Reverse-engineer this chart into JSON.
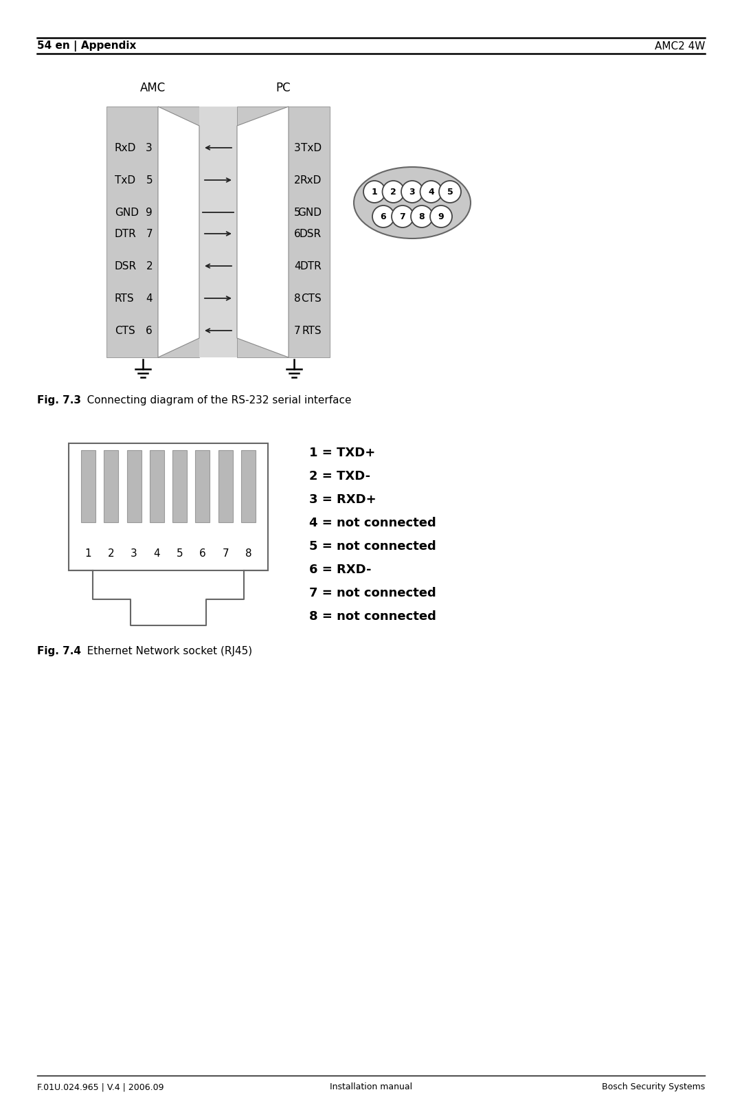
{
  "page_width": 10.8,
  "page_height": 16.18,
  "bg_color": "#ffffff",
  "header_left": "54 en | Appendix",
  "header_right": "AMC2 4W",
  "footer_left": "F.01U.024.965 | V.4 | 2006.09",
  "footer_center": "Installation manual",
  "footer_right": "Bosch Security Systems",
  "fig73_caption_bold": "Fig. 7.3",
  "fig73_caption_rest": "   Connecting diagram of the RS-232 serial interface",
  "fig74_caption_bold": "Fig. 7.4",
  "fig74_caption_rest": "   Ethernet Network socket (RJ45)",
  "amc_label": "AMC",
  "pc_label": "PC",
  "amc_signals": [
    "RxD",
    "TxD",
    "GND",
    "DTR",
    "DSR",
    "RTS",
    "CTS"
  ],
  "amc_pins": [
    "3",
    "5",
    "9",
    "7",
    "2",
    "4",
    "6"
  ],
  "pc_pins": [
    "3",
    "2",
    "5",
    "6",
    "4",
    "8",
    "7"
  ],
  "pc_signals": [
    "TxD",
    "RxD",
    "GND",
    "DSR",
    "DTR",
    "CTS",
    "RTS"
  ],
  "arrow_dirs": [
    "left",
    "right",
    "none",
    "right",
    "left",
    "right",
    "left"
  ],
  "rj45_labels": [
    "1 = TXD+",
    "2 = TXD-",
    "3 = RXD+",
    "4 = not connected",
    "5 = not connected",
    "6 = RXD-",
    "7 = not connected",
    "8 = not connected"
  ],
  "gray_color": "#c8c8c8",
  "mid_gray": "#d8d8d8",
  "contact_gray": "#b8b8b8",
  "line_color": "#222222"
}
